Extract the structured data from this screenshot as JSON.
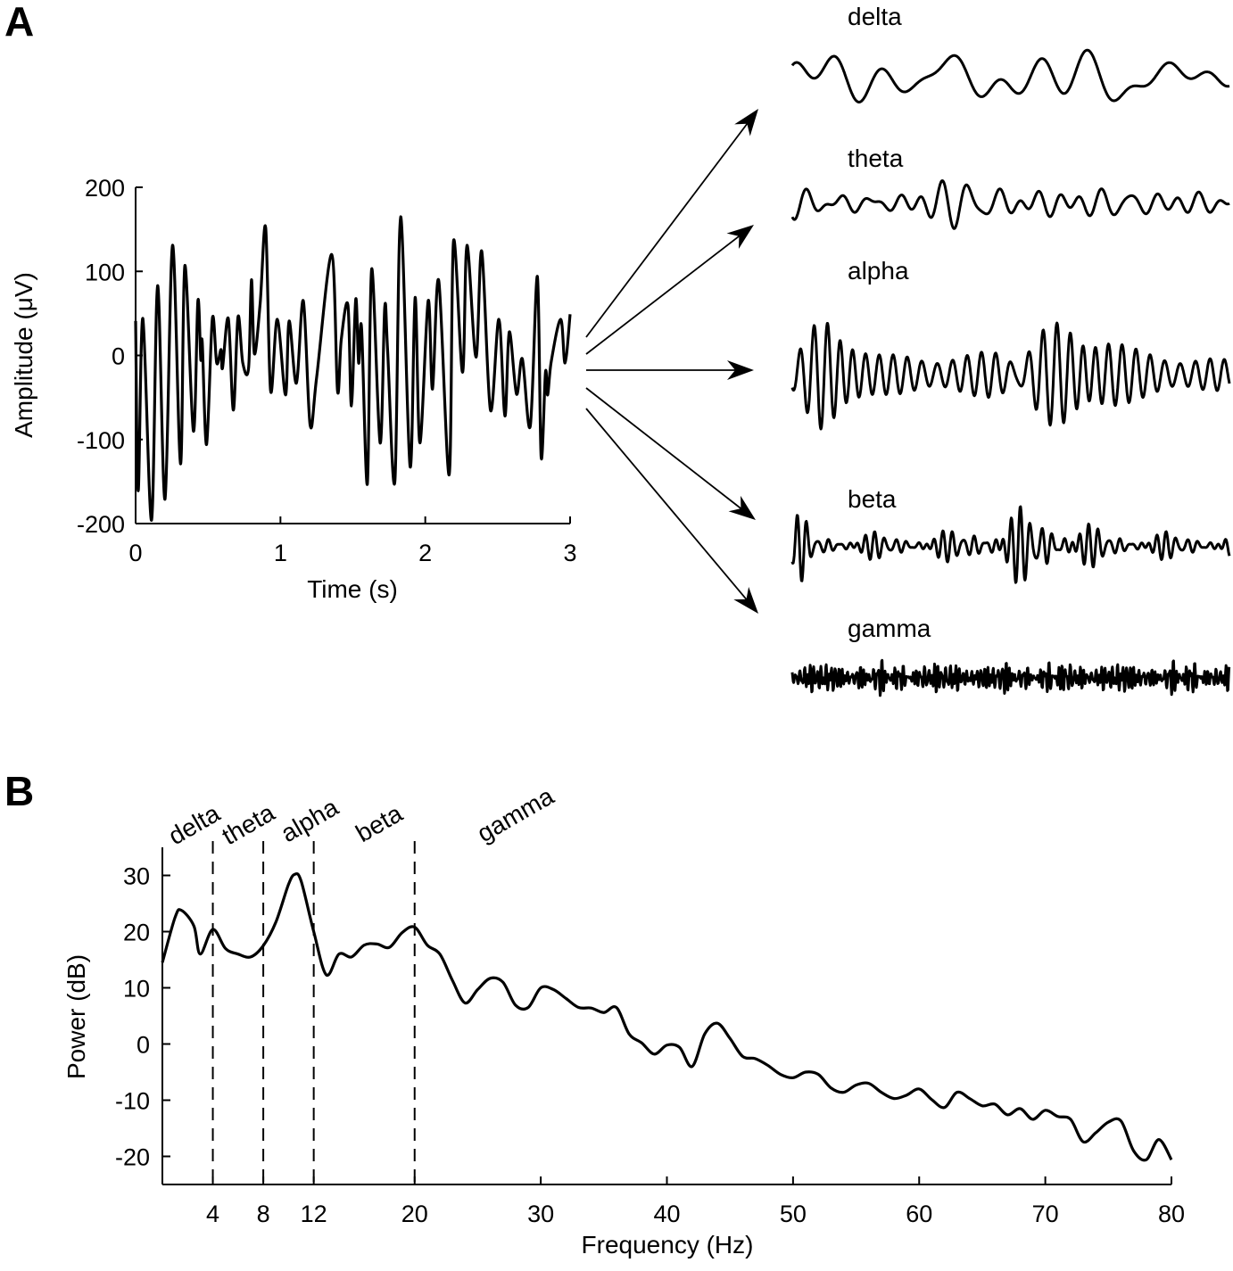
{
  "chart_data": [
    {
      "panel": "A",
      "type": "line",
      "xlabel": "Time (s)",
      "ylabel": "Amplitude (μV)",
      "xlim": [
        0,
        3
      ],
      "ylim": [
        -200,
        200
      ],
      "xticks": [
        "0",
        "1",
        "2",
        "3"
      ],
      "yticks": [
        "200",
        "100",
        "0",
        "-100",
        "-200"
      ],
      "grid": false,
      "color": "#000000",
      "series": [
        {
          "x": [
            0,
            0.018,
            0.05,
            0.11,
            0.152,
            0.203,
            0.255,
            0.31,
            0.34,
            0.399,
            0.43,
            0.45,
            0.46,
            0.49,
            0.53,
            0.56,
            0.59,
            0.6,
            0.64,
            0.675,
            0.707,
            0.74,
            0.78,
            0.8,
            0.82,
            0.86,
            0.898,
            0.932,
            0.978,
            1.035,
            1.06,
            1.11,
            1.158,
            1.205,
            1.25,
            1.354,
            1.394,
            1.42,
            1.466,
            1.49,
            1.52,
            1.54,
            1.56,
            1.6,
            1.63,
            1.688,
            1.72,
            1.74,
            1.79,
            1.83,
            1.895,
            1.93,
            1.963,
            2.02,
            2.05,
            2.093,
            2.165,
            2.195,
            2.257,
            2.288,
            2.35,
            2.39,
            2.45,
            2.508,
            2.55,
            2.58,
            2.63,
            2.67,
            2.725,
            2.774,
            2.8,
            2.83,
            2.845,
            2.87,
            2.935,
            2.965,
            3.0
          ],
          "y": [
            41,
            -161,
            44,
            -196,
            83,
            -171,
            131,
            -129,
            107,
            -90,
            65,
            -5,
            16,
            -106,
            44,
            -9,
            7,
            -15,
            44,
            -65,
            46,
            -9,
            -15,
            90,
            2,
            62,
            152,
            -42,
            43,
            -47,
            41,
            -33,
            65,
            -83,
            -26,
            120,
            -42,
            19,
            60,
            -60,
            67,
            -9,
            33,
            -153,
            103,
            -104,
            57,
            6,
            -150,
            165,
            -132,
            69,
            -104,
            65,
            -40,
            89,
            -142,
            136,
            -20,
            131,
            -2,
            124,
            -65,
            43,
            -72,
            28,
            -46,
            -4,
            -84,
            94,
            -121,
            -20,
            -47,
            -7,
            43,
            -9,
            49
          ]
        }
      ]
    },
    {
      "panel": "A",
      "type": "line",
      "description_labels": [
        "delta",
        "theta",
        "alpha",
        "beta",
        "gamma"
      ],
      "series": [
        {
          "name": "delta"
        },
        {
          "name": "theta"
        },
        {
          "name": "alpha"
        },
        {
          "name": "beta"
        },
        {
          "name": "gamma"
        }
      ]
    },
    {
      "panel": "B",
      "type": "line",
      "xlabel": "Frequency (Hz)",
      "ylabel": "Power (dB)",
      "xlim": [
        0,
        80
      ],
      "ylim": [
        -25,
        35
      ],
      "xticks": [
        "4",
        "8",
        "12",
        "20",
        "30",
        "40",
        "50",
        "60",
        "70",
        "80"
      ],
      "yticks": [
        "30",
        "20",
        "10",
        "0",
        "-10",
        "-20"
      ],
      "grid": false,
      "band_boundaries": [
        4,
        8,
        12,
        20
      ],
      "band_labels": [
        "delta",
        "theta",
        "alpha",
        "beta",
        "gamma"
      ],
      "series": [
        {
          "x": [
            0,
            1,
            1.5,
            2.5,
            3,
            4,
            5,
            6,
            7,
            8,
            9,
            10,
            10.5,
            11,
            12,
            13,
            14,
            15,
            16,
            17,
            18,
            19,
            20,
            21,
            22,
            23,
            24,
            25,
            26,
            27,
            28,
            29,
            30,
            31,
            32,
            33,
            34,
            35,
            36,
            37,
            38,
            39,
            40,
            41,
            42,
            43,
            44,
            45,
            46,
            47,
            48,
            49,
            50,
            51,
            52,
            53,
            54,
            55,
            56,
            57,
            58,
            59,
            60,
            61,
            62,
            63,
            64,
            65,
            66,
            67,
            68,
            69,
            70,
            71,
            72,
            73,
            74,
            75,
            76,
            77,
            78,
            79,
            80
          ],
          "y": [
            14.5,
            22.5,
            23.8,
            21,
            16,
            20.4,
            17,
            16,
            15.5,
            17.5,
            21.7,
            28.4,
            30.2,
            29,
            20,
            12.3,
            16,
            15.5,
            17.6,
            17.8,
            17.2,
            19.8,
            20.8,
            17.6,
            16,
            11.3,
            7.3,
            9.7,
            11.7,
            11,
            6.9,
            6.5,
            10,
            9.7,
            8.1,
            6.5,
            6.4,
            5.6,
            6.5,
            1.8,
            0.2,
            -1.8,
            -0.2,
            -0.6,
            -4,
            1.8,
            3.7,
            1,
            -2.2,
            -2.6,
            -3.8,
            -5.4,
            -6,
            -5,
            -5.4,
            -7.8,
            -8.6,
            -7.3,
            -7,
            -8.6,
            -9.7,
            -9.1,
            -8,
            -9.9,
            -11.3,
            -8.6,
            -9.7,
            -11,
            -10.7,
            -12.6,
            -11.5,
            -13.4,
            -11.8,
            -12.9,
            -13.4,
            -17.4,
            -15.8,
            -13.9,
            -13.7,
            -19,
            -20.6,
            -17,
            -20.6
          ]
        }
      ]
    }
  ],
  "panels": {
    "a": "A",
    "b": "B"
  }
}
